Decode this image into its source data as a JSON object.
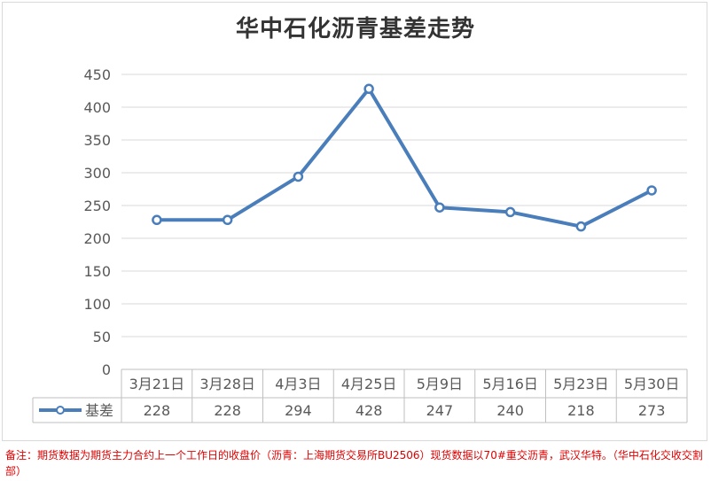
{
  "chart_data": {
    "type": "line",
    "title": "华中石化沥青基差走势",
    "categories": [
      "3月21日",
      "3月28日",
      "4月3日",
      "4月25日",
      "5月9日",
      "5月16日",
      "5月23日",
      "5月30日"
    ],
    "series": [
      {
        "name": "基差",
        "values": [
          228,
          228,
          294,
          428,
          247,
          240,
          218,
          273
        ],
        "color": "#4a7ebb"
      }
    ],
    "ylim": [
      0,
      450
    ],
    "yticks": [
      0,
      50,
      100,
      150,
      200,
      250,
      300,
      350,
      400,
      450
    ],
    "grid": true,
    "legend": "data-table-left"
  },
  "note": "备注：期货数据为期货主力合约上一个工作日的收盘价（沥青：上海期货交易所BU2506）现货数据以70#重交沥青，武汉华特。（华中石化交收交割部）"
}
